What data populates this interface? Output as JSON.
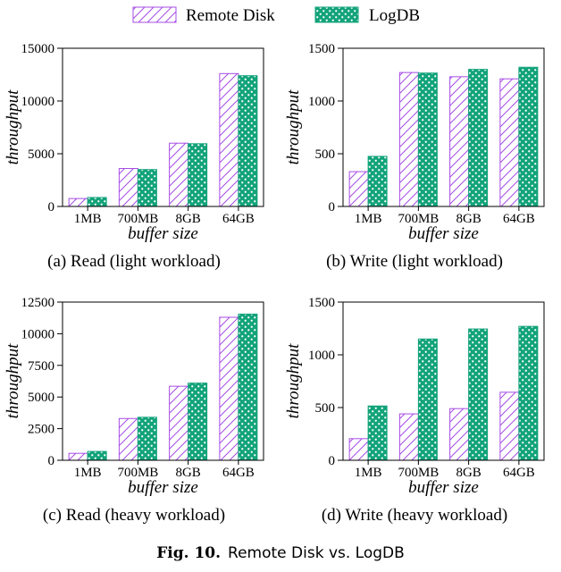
{
  "legend": {
    "series_a": "Remote Disk",
    "series_b": "LogDB"
  },
  "colors": {
    "remote_disk": "#a64ce6",
    "logdb": "#12a37a"
  },
  "figure_caption": {
    "number": "Fig. 10.",
    "text": "Remote Disk vs. LogDB"
  },
  "chart_data": [
    {
      "type": "bar",
      "caption": "(a) Read (light workload)",
      "xlabel": "buffer size",
      "ylabel": "throughput",
      "categories": [
        "1MB",
        "700MB",
        "8GB",
        "64GB"
      ],
      "ylim": [
        0,
        15000
      ],
      "yticks": [
        0,
        5000,
        10000,
        15000
      ],
      "series": [
        {
          "name": "Remote Disk",
          "values": [
            750,
            3600,
            6000,
            12600
          ]
        },
        {
          "name": "LogDB",
          "values": [
            850,
            3500,
            5950,
            12400
          ]
        }
      ]
    },
    {
      "type": "bar",
      "caption": "(b) Write (light workload)",
      "xlabel": "buffer size",
      "ylabel": "throughput",
      "categories": [
        "1MB",
        "700MB",
        "8GB",
        "64GB"
      ],
      "ylim": [
        0,
        1500
      ],
      "yticks": [
        0,
        500,
        1000,
        1500
      ],
      "series": [
        {
          "name": "Remote Disk",
          "values": [
            330,
            1270,
            1230,
            1210
          ]
        },
        {
          "name": "LogDB",
          "values": [
            475,
            1265,
            1300,
            1320
          ]
        }
      ]
    },
    {
      "type": "bar",
      "caption": "(c) Read (heavy workload)",
      "xlabel": "buffer size",
      "ylabel": "throughput",
      "categories": [
        "1MB",
        "700MB",
        "8GB",
        "64GB"
      ],
      "ylim": [
        0,
        12500
      ],
      "yticks": [
        0,
        2500,
        5000,
        7500,
        10000,
        12500
      ],
      "series": [
        {
          "name": "Remote Disk",
          "values": [
            550,
            3300,
            5850,
            11300
          ]
        },
        {
          "name": "LogDB",
          "values": [
            700,
            3400,
            6100,
            11550
          ]
        }
      ]
    },
    {
      "type": "bar",
      "caption": "(d) Write (heavy workload)",
      "xlabel": "buffer size",
      "ylabel": "throughput",
      "categories": [
        "1MB",
        "700MB",
        "8GB",
        "64GB"
      ],
      "ylim": [
        0,
        1500
      ],
      "yticks": [
        0,
        500,
        1000,
        1500
      ],
      "series": [
        {
          "name": "Remote Disk",
          "values": [
            205,
            440,
            490,
            645
          ]
        },
        {
          "name": "LogDB",
          "values": [
            515,
            1150,
            1245,
            1270
          ]
        }
      ]
    }
  ]
}
